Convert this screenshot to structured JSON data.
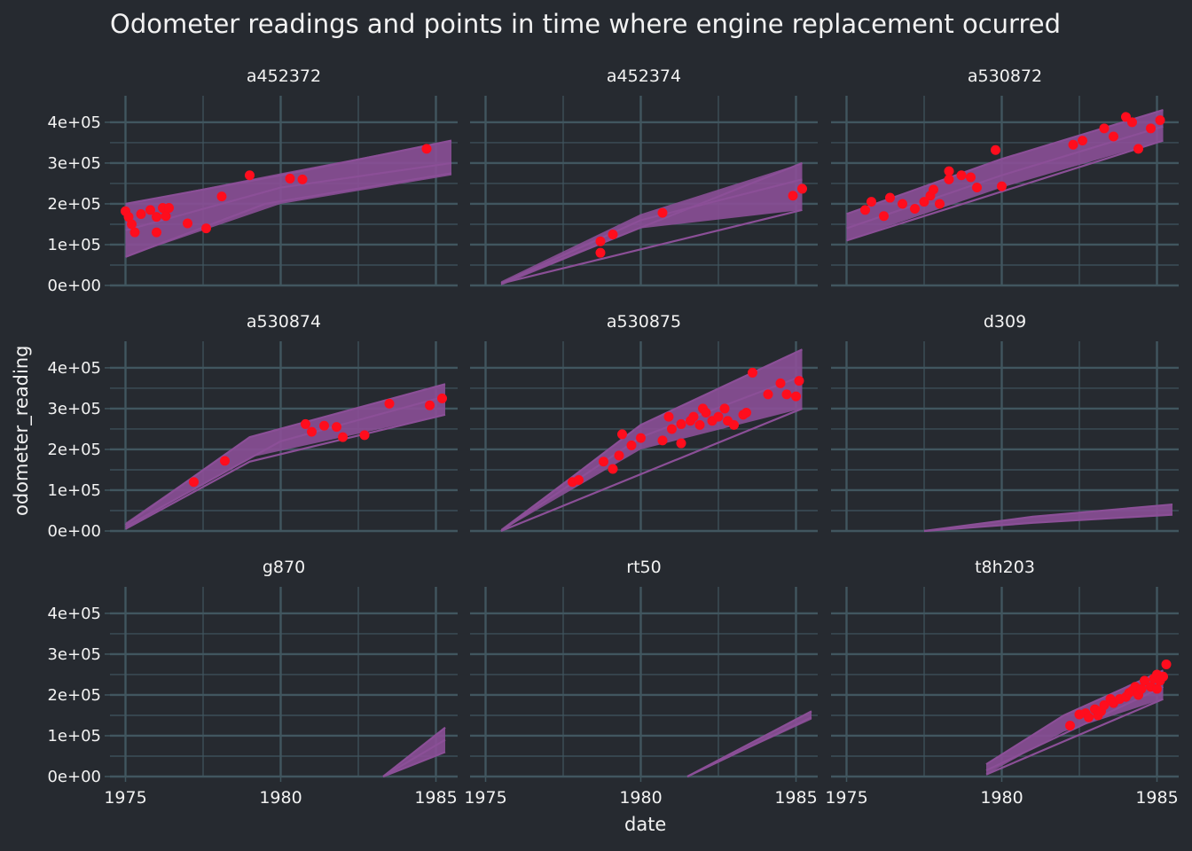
{
  "chart_data": {
    "type": "line",
    "title": "Odometer readings and points in time where engine replacement ocurred",
    "xlabel": "date",
    "ylabel": "odometer_reading",
    "x_ticks": [
      "1975",
      "1980",
      "1985"
    ],
    "y_ticks": [
      "0e+00",
      "1e+05",
      "2e+05",
      "3e+05",
      "4e+05"
    ],
    "xlim": [
      1974.5,
      1985.7
    ],
    "ylim": [
      0,
      465000
    ],
    "colors": {
      "background": "#262a30",
      "grid": "#41565f",
      "line": "#8b4f97",
      "point": "#ff0d1d",
      "text": "#f2f2f2"
    },
    "panels": [
      {
        "name": "a452372",
        "bands": [
          [
            1975.0,
            70000,
            200000
          ],
          [
            1980.0,
            200000,
            275000
          ],
          [
            1985.5,
            270000,
            355000
          ]
        ],
        "lines": [
          [
            [
              1975.0,
              70000
            ],
            [
              1979.5,
              200000
            ],
            [
              1985.5,
              275000
            ]
          ],
          [
            [
              1975.0,
              200000
            ],
            [
              1980,
              270000
            ],
            [
              1985.5,
              355000
            ]
          ],
          [
            [
              1975.0,
              135000
            ],
            [
              1980,
              240000
            ],
            [
              1985.5,
              300000
            ]
          ]
        ],
        "points": [
          [
            1975.0,
            182000
          ],
          [
            1975.1,
            168000
          ],
          [
            1975.2,
            150000
          ],
          [
            1975.3,
            130000
          ],
          [
            1975.5,
            175000
          ],
          [
            1975.8,
            185000
          ],
          [
            1976.0,
            130000
          ],
          [
            1976.0,
            168000
          ],
          [
            1976.2,
            190000
          ],
          [
            1976.3,
            170000
          ],
          [
            1976.4,
            190000
          ],
          [
            1977.0,
            152000
          ],
          [
            1977.6,
            140000
          ],
          [
            1978.1,
            218000
          ],
          [
            1979.0,
            270000
          ],
          [
            1980.3,
            262000
          ],
          [
            1980.7,
            260000
          ],
          [
            1984.7,
            335000
          ]
        ]
      },
      {
        "name": "a452374",
        "bands": [
          [
            1975.5,
            0,
            10000
          ],
          [
            1980.0,
            140000,
            175000
          ],
          [
            1985.2,
            185000,
            300000
          ]
        ],
        "lines": [
          [
            [
              1975.5,
              5000
            ],
            [
              1985.2,
              185000
            ]
          ],
          [
            [
              1975.5,
              5000
            ],
            [
              1985.2,
              300000
            ]
          ],
          [
            [
              1975.5,
              5000
            ],
            [
              1980,
              160000
            ],
            [
              1985.2,
              260000
            ]
          ]
        ],
        "points": [
          [
            1978.7,
            80000
          ],
          [
            1978.7,
            108000
          ],
          [
            1979.1,
            125000
          ],
          [
            1980.7,
            178000
          ],
          [
            1984.9,
            220000
          ],
          [
            1985.2,
            237000
          ]
        ]
      },
      {
        "name": "a530872",
        "bands": [
          [
            1975.0,
            110000,
            175000
          ],
          [
            1980.0,
            240000,
            310000
          ],
          [
            1985.2,
            355000,
            430000
          ]
        ],
        "lines": [
          [
            [
              1975.0,
              110000
            ],
            [
              1985.2,
              355000
            ]
          ],
          [
            [
              1975.0,
              175000
            ],
            [
              1980,
              310000
            ],
            [
              1985.2,
              430000
            ]
          ],
          [
            [
              1975.0,
              140000
            ],
            [
              1980,
              270000
            ],
            [
              1985.2,
              390000
            ]
          ]
        ],
        "points": [
          [
            1975.6,
            185000
          ],
          [
            1975.8,
            205000
          ],
          [
            1976.2,
            170000
          ],
          [
            1976.4,
            215000
          ],
          [
            1976.8,
            200000
          ],
          [
            1977.2,
            188000
          ],
          [
            1977.5,
            205000
          ],
          [
            1977.7,
            220000
          ],
          [
            1977.8,
            235000
          ],
          [
            1978.0,
            200000
          ],
          [
            1978.3,
            260000
          ],
          [
            1978.3,
            280000
          ],
          [
            1978.7,
            270000
          ],
          [
            1979.0,
            265000
          ],
          [
            1979.2,
            240000
          ],
          [
            1979.8,
            332000
          ],
          [
            1980.0,
            243000
          ],
          [
            1982.3,
            345000
          ],
          [
            1982.6,
            355000
          ],
          [
            1983.3,
            385000
          ],
          [
            1983.6,
            365000
          ],
          [
            1984.0,
            413000
          ],
          [
            1984.2,
            400000
          ],
          [
            1984.4,
            335000
          ],
          [
            1984.8,
            385000
          ],
          [
            1985.1,
            405000
          ]
        ]
      },
      {
        "name": "a530874",
        "bands": [
          [
            1975.0,
            5000,
            20000
          ],
          [
            1979.0,
            180000,
            230000
          ],
          [
            1985.3,
            285000,
            360000
          ]
        ],
        "lines": [
          [
            [
              1975.0,
              5000
            ],
            [
              1979,
              170000
            ],
            [
              1985.3,
              285000
            ]
          ],
          [
            [
              1975.0,
              15000
            ],
            [
              1979,
              230000
            ],
            [
              1985.3,
              360000
            ]
          ],
          [
            [
              1975.0,
              10000
            ],
            [
              1980,
              220000
            ],
            [
              1985.3,
              330000
            ]
          ]
        ],
        "points": [
          [
            1977.2,
            120000
          ],
          [
            1978.2,
            172000
          ],
          [
            1980.8,
            262000
          ],
          [
            1981.0,
            243000
          ],
          [
            1981.4,
            258000
          ],
          [
            1981.8,
            255000
          ],
          [
            1982.0,
            230000
          ],
          [
            1982.7,
            235000
          ],
          [
            1983.5,
            312000
          ],
          [
            1984.8,
            308000
          ],
          [
            1985.2,
            325000
          ]
        ]
      },
      {
        "name": "a530875",
        "bands": [
          [
            1975.5,
            0,
            5000
          ],
          [
            1980.0,
            200000,
            260000
          ],
          [
            1985.2,
            300000,
            445000
          ]
        ],
        "lines": [
          [
            [
              1975.5,
              0
            ],
            [
              1985.2,
              300000
            ]
          ],
          [
            [
              1975.5,
              0
            ],
            [
              1980,
              260000
            ],
            [
              1985.2,
              445000
            ]
          ],
          [
            [
              1975.5,
              0
            ],
            [
              1980,
              230000
            ],
            [
              1985.2,
              380000
            ]
          ]
        ],
        "points": [
          [
            1977.8,
            120000
          ],
          [
            1978.0,
            125000
          ],
          [
            1978.8,
            170000
          ],
          [
            1979.1,
            152000
          ],
          [
            1979.3,
            185000
          ],
          [
            1979.4,
            237000
          ],
          [
            1979.7,
            210000
          ],
          [
            1980.0,
            228000
          ],
          [
            1980.7,
            222000
          ],
          [
            1980.9,
            280000
          ],
          [
            1981.0,
            250000
          ],
          [
            1981.3,
            262000
          ],
          [
            1981.3,
            215000
          ],
          [
            1981.6,
            270000
          ],
          [
            1981.7,
            280000
          ],
          [
            1981.9,
            260000
          ],
          [
            1982.0,
            300000
          ],
          [
            1982.1,
            290000
          ],
          [
            1982.3,
            270000
          ],
          [
            1982.5,
            280000
          ],
          [
            1982.7,
            300000
          ],
          [
            1982.8,
            270000
          ],
          [
            1983.0,
            260000
          ],
          [
            1983.3,
            285000
          ],
          [
            1983.4,
            290000
          ],
          [
            1983.6,
            388000
          ],
          [
            1984.1,
            335000
          ],
          [
            1984.5,
            362000
          ],
          [
            1984.7,
            335000
          ],
          [
            1985.0,
            330000
          ],
          [
            1985.1,
            368000
          ]
        ]
      },
      {
        "name": "d309",
        "bands": [
          [
            1977.5,
            0,
            0
          ],
          [
            1981.0,
            20000,
            35000
          ],
          [
            1985.5,
            40000,
            65000
          ]
        ],
        "lines": [
          [
            [
              1977.5,
              0
            ],
            [
              1981,
              20000
            ],
            [
              1985.5,
              40000
            ]
          ],
          [
            [
              1977.5,
              0
            ],
            [
              1981,
              35000
            ],
            [
              1985.5,
              65000
            ]
          ]
        ],
        "points": []
      },
      {
        "name": "g870",
        "bands": [
          [
            1983.3,
            0,
            0
          ],
          [
            1985.3,
            60000,
            120000
          ]
        ],
        "lines": [
          [
            [
              1983.3,
              0
            ],
            [
              1985.3,
              60000
            ]
          ],
          [
            [
              1983.3,
              0
            ],
            [
              1985.3,
              120000
            ]
          ],
          [
            [
              1983.3,
              0
            ],
            [
              1985.3,
              90000
            ]
          ]
        ],
        "points": []
      },
      {
        "name": "rt50",
        "bands": [
          [
            1981.5,
            0,
            0
          ],
          [
            1985.5,
            140000,
            160000
          ]
        ],
        "lines": [
          [
            [
              1981.5,
              0
            ],
            [
              1985.5,
              145000
            ]
          ],
          [
            [
              1981.5,
              0
            ],
            [
              1985.5,
              160000
            ]
          ]
        ],
        "points": []
      },
      {
        "name": "t8h203",
        "bands": [
          [
            1979.5,
            5000,
            30000
          ],
          [
            1982.0,
            110000,
            150000
          ],
          [
            1985.2,
            190000,
            260000
          ]
        ],
        "lines": [
          [
            [
              1979.5,
              5000
            ],
            [
              1985.2,
              190000
            ]
          ],
          [
            [
              1979.5,
              30000
            ],
            [
              1982,
              150000
            ],
            [
              1985.2,
              260000
            ]
          ],
          [
            [
              1979.5,
              15000
            ],
            [
              1985.2,
              220000
            ]
          ]
        ],
        "points": [
          [
            1982.2,
            125000
          ],
          [
            1982.5,
            152000
          ],
          [
            1982.7,
            155000
          ],
          [
            1982.8,
            145000
          ],
          [
            1983.0,
            165000
          ],
          [
            1983.1,
            150000
          ],
          [
            1983.2,
            160000
          ],
          [
            1983.3,
            175000
          ],
          [
            1983.5,
            190000
          ],
          [
            1983.6,
            180000
          ],
          [
            1983.8,
            190000
          ],
          [
            1984.0,
            195000
          ],
          [
            1984.1,
            205000
          ],
          [
            1984.2,
            210000
          ],
          [
            1984.3,
            220000
          ],
          [
            1984.4,
            200000
          ],
          [
            1984.5,
            215000
          ],
          [
            1984.6,
            235000
          ],
          [
            1984.8,
            220000
          ],
          [
            1984.9,
            240000
          ],
          [
            1985.0,
            250000
          ],
          [
            1985.0,
            215000
          ],
          [
            1985.1,
            235000
          ],
          [
            1985.2,
            245000
          ],
          [
            1985.3,
            275000
          ]
        ]
      }
    ]
  }
}
